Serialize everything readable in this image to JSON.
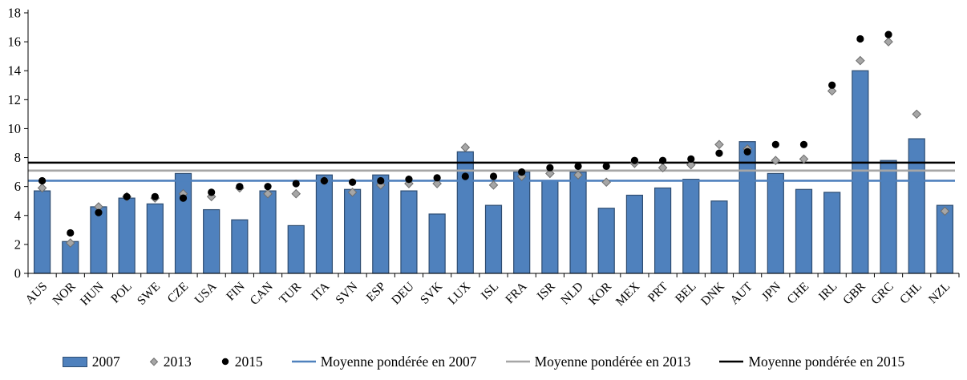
{
  "chart_data": {
    "type": "bar",
    "title": "",
    "xlabel": "",
    "ylabel": "",
    "ylim": [
      0,
      18
    ],
    "yticks": [
      0,
      2,
      4,
      6,
      8,
      10,
      12,
      14,
      16,
      18
    ],
    "grid": false,
    "legend_position": "bottom",
    "categories": [
      "AUS",
      "NOR",
      "HUN",
      "POL",
      "SWE",
      "CZE",
      "USA",
      "FIN",
      "CAN",
      "TUR",
      "ITA",
      "SVN",
      "ESP",
      "DEU",
      "SVK",
      "LUX",
      "ISL",
      "FRA",
      "ISR",
      "NLD",
      "KOR",
      "MEX",
      "PRT",
      "BEL",
      "DNK",
      "AUT",
      "JPN",
      "CHE",
      "IRL",
      "GBR",
      "GRC",
      "CHL",
      "NZL"
    ],
    "series": [
      {
        "name": "2007",
        "marker": "bar",
        "color": "#4f81bd",
        "border_color": "#2e4d72",
        "values": [
          5.7,
          2.2,
          4.6,
          5.2,
          4.8,
          6.9,
          4.4,
          3.7,
          5.7,
          3.3,
          6.8,
          5.8,
          6.8,
          5.7,
          4.1,
          8.4,
          4.7,
          7.0,
          6.4,
          7.0,
          4.5,
          5.4,
          5.9,
          6.5,
          5.0,
          9.1,
          6.9,
          5.8,
          5.6,
          14.0,
          7.8,
          9.3,
          4.7
        ]
      },
      {
        "name": "2013",
        "marker": "diamond",
        "color": "#a6a6a6",
        "border_color": "#6d6d6d",
        "values": [
          5.9,
          2.1,
          4.6,
          5.3,
          5.2,
          5.5,
          5.3,
          5.9,
          5.5,
          5.5,
          6.4,
          5.6,
          6.1,
          6.2,
          6.2,
          8.7,
          6.1,
          6.7,
          6.9,
          6.8,
          6.3,
          7.6,
          7.3,
          7.5,
          8.9,
          8.6,
          7.8,
          7.9,
          12.6,
          14.7,
          16.0,
          11.0,
          4.3
        ]
      },
      {
        "name": "2015",
        "marker": "circle",
        "color": "#000000",
        "border_color": "#000000",
        "values": [
          6.4,
          2.8,
          4.2,
          5.3,
          5.3,
          5.2,
          5.6,
          6.0,
          6.0,
          6.2,
          6.4,
          6.3,
          6.4,
          6.5,
          6.6,
          6.7,
          6.7,
          7.0,
          7.3,
          7.4,
          7.4,
          7.8,
          7.8,
          7.9,
          8.3,
          8.4,
          8.9,
          8.9,
          13.0,
          16.2,
          16.5,
          null,
          null
        ]
      }
    ],
    "reference_lines": [
      {
        "name": "Moyenne pondérée en 2007",
        "value": 6.4,
        "color": "#4f81bd"
      },
      {
        "name": "Moyenne pondérée en 2013",
        "value": 7.1,
        "color": "#a6a6a6"
      },
      {
        "name": "Moyenne pondérée en 2015",
        "value": 7.65,
        "color": "#000000"
      }
    ]
  }
}
